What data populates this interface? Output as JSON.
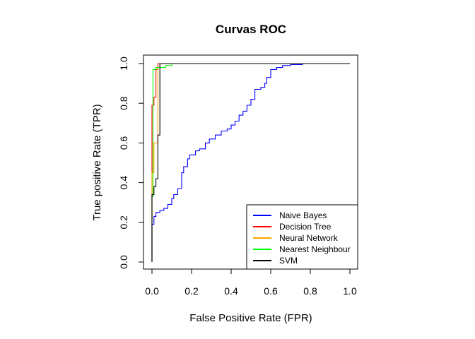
{
  "chart_data": {
    "type": "line",
    "title": "Curvas ROC",
    "xlabel": "False Positive Rate (FPR)",
    "ylabel": "True positive Rate (TPR)",
    "xlim": [
      0,
      1
    ],
    "ylim": [
      0,
      1
    ],
    "xticks": [
      "0.0",
      "0.2",
      "0.4",
      "0.6",
      "0.8",
      "1.0"
    ],
    "yticks": [
      "0.0",
      "0.2",
      "0.4",
      "0.6",
      "0.8",
      "1.0"
    ],
    "legend_position": "bottom-right",
    "grid": false,
    "series": [
      {
        "name": "Naive Bayes",
        "color": "#0000ff",
        "points": [
          [
            0,
            0
          ],
          [
            0,
            0.19
          ],
          [
            0.01,
            0.19
          ],
          [
            0.01,
            0.23
          ],
          [
            0.02,
            0.23
          ],
          [
            0.02,
            0.25
          ],
          [
            0.04,
            0.25
          ],
          [
            0.04,
            0.26
          ],
          [
            0.06,
            0.26
          ],
          [
            0.06,
            0.27
          ],
          [
            0.08,
            0.27
          ],
          [
            0.08,
            0.29
          ],
          [
            0.1,
            0.29
          ],
          [
            0.1,
            0.32
          ],
          [
            0.11,
            0.32
          ],
          [
            0.11,
            0.34
          ],
          [
            0.13,
            0.34
          ],
          [
            0.13,
            0.37
          ],
          [
            0.15,
            0.37
          ],
          [
            0.15,
            0.45
          ],
          [
            0.16,
            0.45
          ],
          [
            0.16,
            0.48
          ],
          [
            0.18,
            0.48
          ],
          [
            0.18,
            0.52
          ],
          [
            0.19,
            0.52
          ],
          [
            0.19,
            0.54
          ],
          [
            0.22,
            0.54
          ],
          [
            0.22,
            0.56
          ],
          [
            0.24,
            0.56
          ],
          [
            0.24,
            0.57
          ],
          [
            0.27,
            0.57
          ],
          [
            0.27,
            0.6
          ],
          [
            0.29,
            0.6
          ],
          [
            0.29,
            0.62
          ],
          [
            0.32,
            0.62
          ],
          [
            0.32,
            0.64
          ],
          [
            0.35,
            0.64
          ],
          [
            0.35,
            0.66
          ],
          [
            0.38,
            0.66
          ],
          [
            0.38,
            0.67
          ],
          [
            0.4,
            0.67
          ],
          [
            0.4,
            0.69
          ],
          [
            0.42,
            0.69
          ],
          [
            0.42,
            0.71
          ],
          [
            0.44,
            0.71
          ],
          [
            0.44,
            0.74
          ],
          [
            0.46,
            0.74
          ],
          [
            0.46,
            0.76
          ],
          [
            0.48,
            0.76
          ],
          [
            0.48,
            0.79
          ],
          [
            0.5,
            0.79
          ],
          [
            0.5,
            0.82
          ],
          [
            0.52,
            0.82
          ],
          [
            0.52,
            0.87
          ],
          [
            0.55,
            0.87
          ],
          [
            0.55,
            0.88
          ],
          [
            0.57,
            0.88
          ],
          [
            0.57,
            0.9
          ],
          [
            0.58,
            0.9
          ],
          [
            0.58,
            0.93
          ],
          [
            0.6,
            0.93
          ],
          [
            0.6,
            0.97
          ],
          [
            0.63,
            0.97
          ],
          [
            0.63,
            0.98
          ],
          [
            0.66,
            0.98
          ],
          [
            0.66,
            0.99
          ],
          [
            0.7,
            0.99
          ],
          [
            0.7,
            0.995
          ],
          [
            0.76,
            0.995
          ],
          [
            0.76,
            1
          ],
          [
            1,
            1
          ]
        ]
      },
      {
        "name": "Decision Tree",
        "color": "#ff0000",
        "points": [
          [
            0,
            0
          ],
          [
            0,
            0.79
          ],
          [
            0.01,
            0.79
          ],
          [
            0.01,
            0.83
          ],
          [
            0.02,
            0.83
          ],
          [
            0.02,
            0.97
          ],
          [
            0.03,
            0.97
          ],
          [
            0.03,
            1
          ],
          [
            1,
            1
          ]
        ]
      },
      {
        "name": "Neural Network",
        "color": "#ffa500",
        "points": [
          [
            0,
            0
          ],
          [
            0,
            0.45
          ],
          [
            0.01,
            0.45
          ],
          [
            0.01,
            0.6
          ],
          [
            0.03,
            0.6
          ],
          [
            0.03,
            0.98
          ],
          [
            0.04,
            0.98
          ],
          [
            0.04,
            1
          ],
          [
            1,
            1
          ]
        ]
      },
      {
        "name": "Nearest Neighbour",
        "color": "#00ff00",
        "points": [
          [
            0,
            0
          ],
          [
            0,
            0.33
          ],
          [
            0.005,
            0.33
          ],
          [
            0.005,
            0.97
          ],
          [
            0.02,
            0.97
          ],
          [
            0.02,
            0.98
          ],
          [
            0.07,
            0.98
          ],
          [
            0.07,
            0.99
          ],
          [
            0.1,
            0.99
          ],
          [
            0.1,
            1
          ],
          [
            1,
            1
          ]
        ]
      },
      {
        "name": "SVM",
        "color": "#000000",
        "points": [
          [
            0,
            0
          ],
          [
            0,
            0.34
          ],
          [
            0.01,
            0.34
          ],
          [
            0.01,
            0.38
          ],
          [
            0.02,
            0.38
          ],
          [
            0.02,
            0.42
          ],
          [
            0.03,
            0.42
          ],
          [
            0.03,
            0.64
          ],
          [
            0.04,
            0.64
          ],
          [
            0.04,
            1
          ],
          [
            1,
            1
          ]
        ]
      }
    ]
  }
}
